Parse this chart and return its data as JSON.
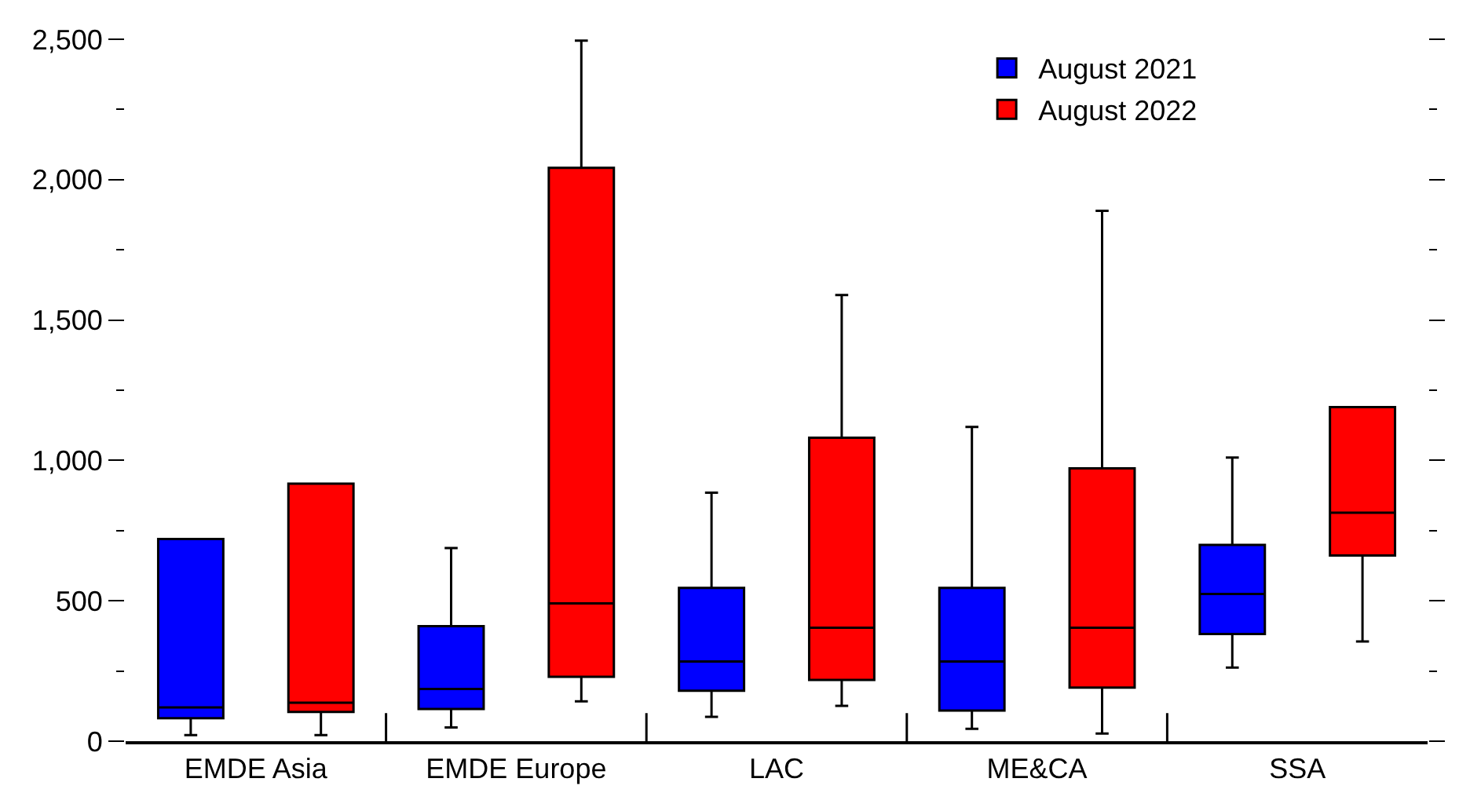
{
  "chart_data": {
    "type": "box",
    "categories": [
      "EMDE Asia",
      "EMDE Europe",
      "LAC",
      "ME&CA",
      "SSA"
    ],
    "series": [
      {
        "name": "August 2021",
        "color": "#0000ff",
        "boxes": [
          {
            "low": 22,
            "q1": 82,
            "median": 120,
            "q3": 720,
            "high": 720
          },
          {
            "low": 49,
            "q1": 115,
            "median": 186,
            "q3": 410,
            "high": 688
          },
          {
            "low": 87,
            "q1": 180,
            "median": 284,
            "q3": 546,
            "high": 885
          },
          {
            "low": 44,
            "q1": 109,
            "median": 284,
            "q3": 546,
            "high": 1119
          },
          {
            "low": 262,
            "q1": 382,
            "median": 524,
            "q3": 699,
            "high": 1010
          }
        ]
      },
      {
        "name": "August 2022",
        "color": "#ff0000",
        "boxes": [
          {
            "low": 22,
            "q1": 104,
            "median": 137,
            "q3": 917,
            "high": 917
          },
          {
            "low": 142,
            "q1": 229,
            "median": 491,
            "q3": 2042,
            "high": 2495
          },
          {
            "low": 126,
            "q1": 218,
            "median": 404,
            "q3": 1081,
            "high": 1589
          },
          {
            "low": 27,
            "q1": 191,
            "median": 404,
            "q3": 972,
            "high": 1889
          },
          {
            "low": 355,
            "q1": 661,
            "median": 814,
            "q3": 1190,
            "high": 1190
          }
        ]
      }
    ],
    "ylim": [
      0,
      2500
    ],
    "yticks": [
      0,
      {
        "value": 250,
        "label": null
      },
      {
        "value": 500,
        "label": "500"
      },
      {
        "value": 750,
        "label": null
      },
      {
        "value": 1000,
        "label": "1,000"
      },
      {
        "value": 1250,
        "label": null
      },
      {
        "value": 1500,
        "label": "1,500"
      },
      {
        "value": 1750,
        "label": null
      },
      {
        "value": 2000,
        "label": "2,000"
      },
      {
        "value": 2250,
        "label": null
      },
      {
        "value": 2500,
        "label": "2,500"
      }
    ],
    "legend": "top right"
  }
}
